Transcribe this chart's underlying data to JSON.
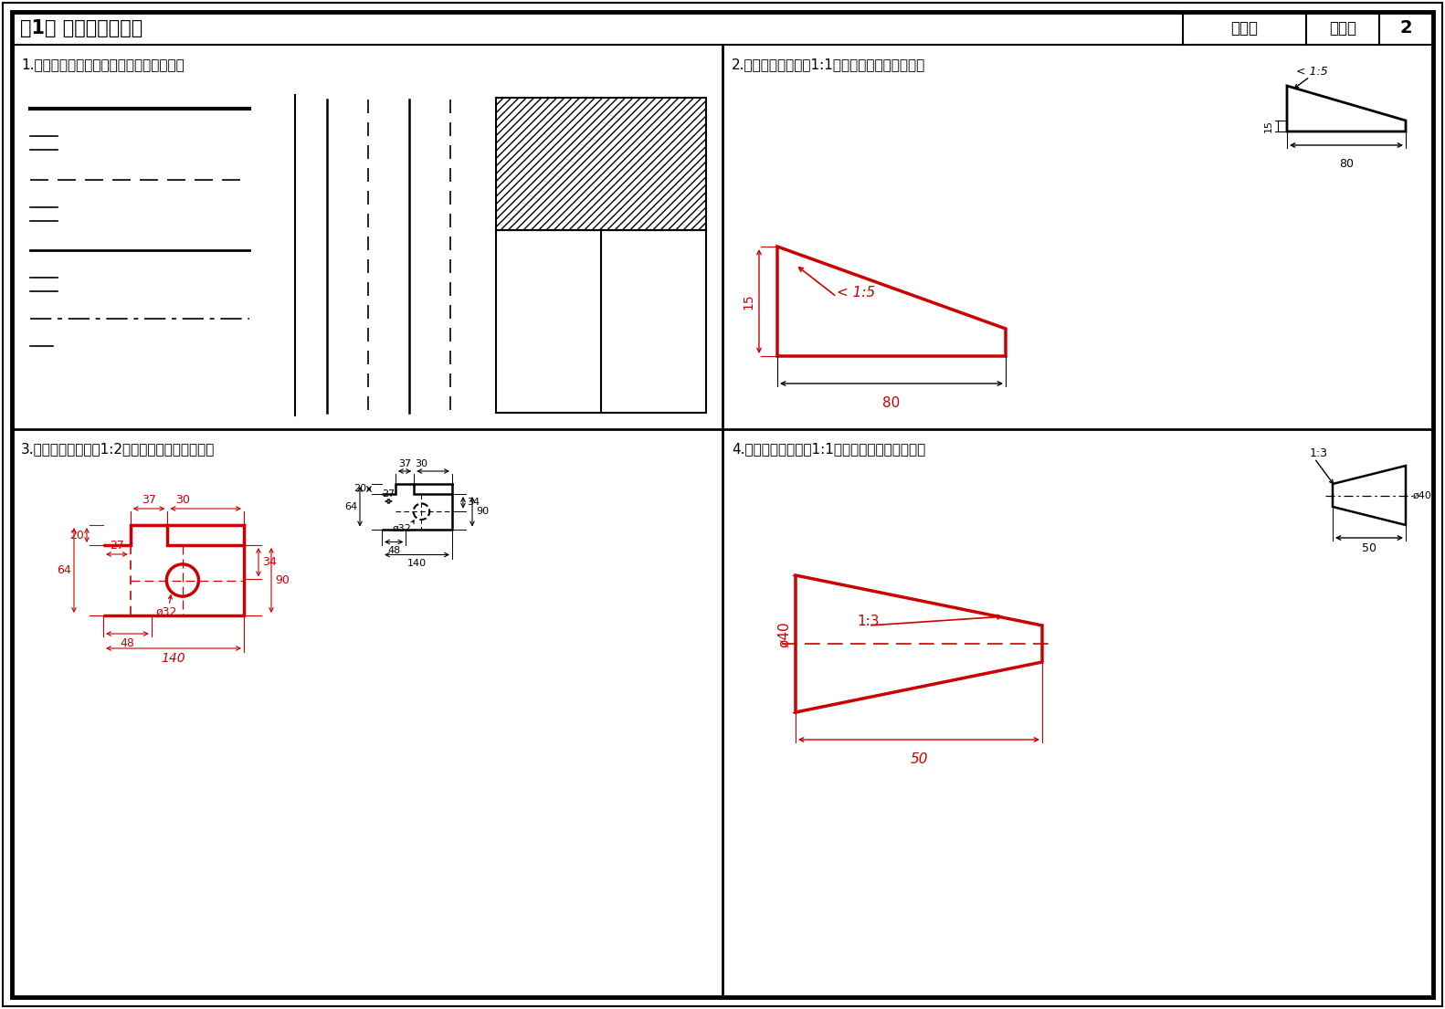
{
  "title": "第1章 制图的基本知识",
  "page_num": "2",
  "class_label": "班级：",
  "name_label": "姓名：",
  "section1_title": "1.在指定位置处，照样画出下列各种图线。",
  "section2_title": "2.参照所示图形，用1:1画出图形，并标注尺寸。",
  "section3_title": "3.参照所示图形，用1:2画出图形，并标注尺寸。",
  "section4_title": "4.参照所示图形，用1:1画出图形，并标注尺寸。",
  "background_color": "#ffffff",
  "border_color": "#000000",
  "red_color": "#cc0000"
}
